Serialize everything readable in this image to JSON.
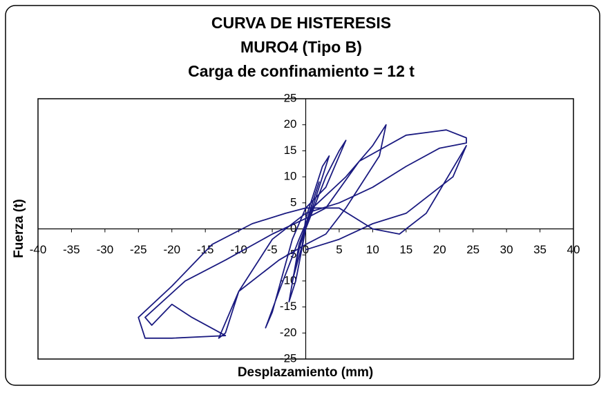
{
  "chart_data": {
    "type": "line",
    "title": [
      "CURVA DE HISTERESIS",
      "MURO4 (Tipo B)",
      "Carga de confinamiento = 12 t"
    ],
    "x_label": "Desplazamiento (mm)",
    "y_label": "Fuerza (t)",
    "color": "#1a1a80",
    "xlim": [
      -40,
      40
    ],
    "xticks": [
      -40,
      -35,
      -30,
      -25,
      -20,
      -15,
      -10,
      -5,
      0,
      5,
      10,
      15,
      20,
      25,
      30,
      35,
      40
    ],
    "ylim": [
      -25,
      25
    ],
    "yticks": [
      -25,
      -20,
      -15,
      -10,
      -5,
      0,
      5,
      10,
      15,
      20,
      25
    ],
    "x": [
      0,
      1,
      2,
      0.5,
      -1,
      -2,
      -0.5,
      0,
      2.5,
      3.5,
      1,
      -1,
      -2.5,
      -1.5,
      0,
      3,
      5,
      6,
      3,
      0,
      -2,
      -5,
      -6,
      -4,
      -1,
      1,
      6,
      10,
      12,
      11,
      6,
      3,
      0,
      -4,
      -10,
      -12,
      -13,
      -10,
      -5,
      0,
      5,
      10,
      15,
      20,
      24,
      24,
      21,
      15,
      8,
      3,
      0,
      -5,
      -12,
      -18,
      -24,
      -23,
      -20,
      -17,
      -12,
      -20,
      -24,
      -25,
      -20,
      -14,
      -8,
      -3,
      0,
      5,
      10,
      14,
      18,
      24,
      22,
      15,
      10,
      5,
      0
    ],
    "values": [
      0,
      5,
      9,
      3,
      -4,
      -10,
      -3,
      2,
      12,
      14,
      4,
      -3,
      -14,
      -10,
      0,
      10,
      15,
      17,
      8,
      4,
      -2,
      -16,
      -19,
      -12,
      -2,
      4,
      10,
      16,
      20,
      14,
      4,
      -1,
      -3,
      -6,
      -12,
      -20,
      -21,
      -12,
      -2,
      3,
      5,
      8,
      12,
      15.5,
      16.5,
      17.5,
      19,
      18,
      13,
      4,
      2,
      -1,
      -6,
      -10,
      -17,
      -18.5,
      -14.5,
      -17,
      -20.5,
      -21,
      -21,
      -17,
      -11,
      -3,
      1,
      3,
      4,
      4,
      0,
      -1,
      3,
      16,
      10,
      3,
      1,
      -2,
      -4
    ]
  }
}
